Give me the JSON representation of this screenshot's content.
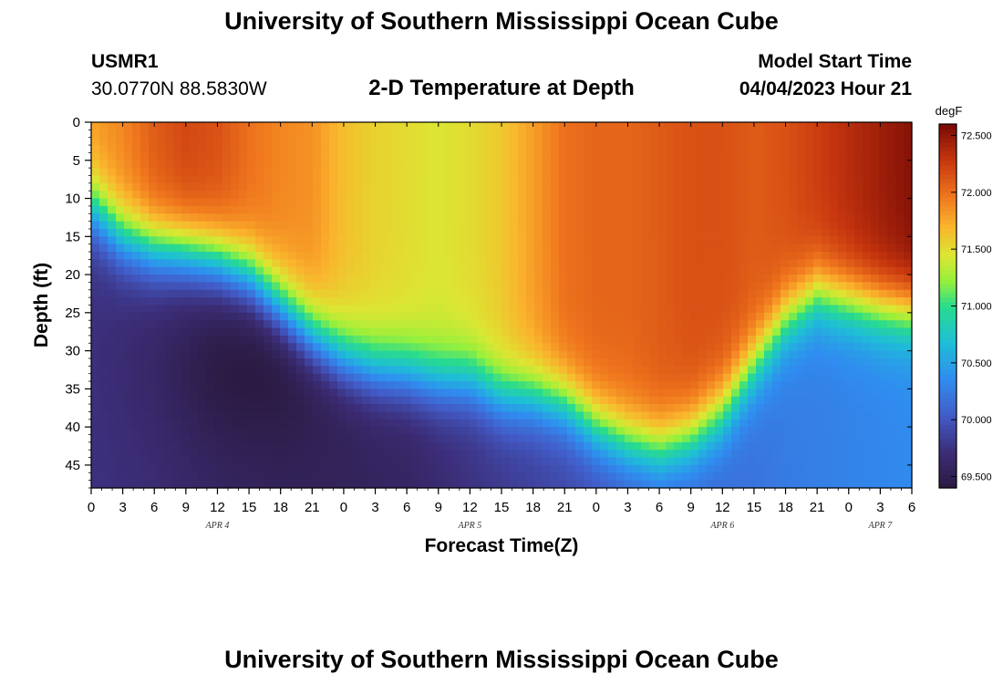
{
  "header": {
    "title": "University of Southern Mississippi Ocean Cube",
    "station_id": "USMR1",
    "station_coords": "30.0770N  88.5830W",
    "plot_title": "2-D Temperature at Depth",
    "model_start_label": "Model Start Time",
    "model_start_value": "04/04/2023 Hour 21"
  },
  "footer": {
    "title": "University of Southern Mississippi Ocean Cube"
  },
  "chart_data": {
    "type": "heatmap",
    "title": "2-D Temperature at Depth",
    "xlabel": "Forecast Time(Z)",
    "ylabel": "Depth (ft)",
    "x_range_hours": [
      0,
      78
    ],
    "y_range_ft": [
      0,
      48
    ],
    "y_inverted": true,
    "x_tick_step_hours": 3,
    "x_tick_labels": [
      "0",
      "3",
      "6",
      "9",
      "12",
      "15",
      "18",
      "21",
      "0",
      "3",
      "6",
      "9",
      "12",
      "15",
      "18",
      "21",
      "0",
      "3",
      "6",
      "9",
      "12",
      "15",
      "18",
      "21",
      "0",
      "3",
      "6"
    ],
    "y_tick_labels": [
      "0",
      "5",
      "10",
      "15",
      "20",
      "25",
      "30",
      "35",
      "40",
      "45"
    ],
    "y_tick_values": [
      0,
      5,
      10,
      15,
      20,
      25,
      30,
      35,
      40,
      45
    ],
    "date_labels": [
      {
        "text": "APR 4",
        "hour": 12
      },
      {
        "text": "APR 5",
        "hour": 36
      },
      {
        "text": "APR 6",
        "hour": 60
      },
      {
        "text": "APR 7",
        "hour": 75
      }
    ],
    "colorbar": {
      "unit": "degF",
      "min": 69.4,
      "max": 72.6,
      "tick_labels": [
        "72.500",
        "72.000",
        "71.500",
        "71.000",
        "70.500",
        "70.000",
        "69.500"
      ],
      "tick_values": [
        72.5,
        72.0,
        71.5,
        71.0,
        70.5,
        70.0,
        69.5
      ]
    },
    "thermocline_depth_ft": {
      "hours": [
        0,
        3,
        6,
        9,
        12,
        15,
        18,
        21,
        24,
        27,
        30,
        33,
        36,
        39,
        42,
        45,
        48,
        51,
        54,
        57,
        60,
        63,
        66,
        69,
        72,
        75,
        78
      ],
      "depth": [
        11,
        15,
        16.5,
        17,
        18,
        20,
        24,
        28,
        31,
        32.5,
        33,
        34,
        34,
        36,
        36,
        37,
        40,
        42,
        43,
        41.5,
        38,
        32,
        26,
        22.5,
        23.5,
        24.5,
        25
      ]
    },
    "surface_temperature_degF": {
      "hours": [
        0,
        3,
        6,
        9,
        12,
        15,
        18,
        21,
        24,
        27,
        30,
        33,
        36,
        39,
        42,
        45,
        48,
        51,
        54,
        57,
        60,
        63,
        66,
        69,
        72,
        75,
        78
      ],
      "temp": [
        71.8,
        71.9,
        72.1,
        72.2,
        72.15,
        72.0,
        71.9,
        71.85,
        71.65,
        71.55,
        71.5,
        71.45,
        71.5,
        71.6,
        71.8,
        72.0,
        72.05,
        72.05,
        72.1,
        72.15,
        72.15,
        72.1,
        72.15,
        72.25,
        72.35,
        72.45,
        72.55
      ]
    },
    "deep_temperature_degF": {
      "hours": [
        0,
        6,
        12,
        18,
        24,
        30,
        36,
        42,
        48,
        54,
        60,
        66,
        72,
        78
      ],
      "temp": [
        69.75,
        69.7,
        69.6,
        69.55,
        69.55,
        69.6,
        69.75,
        69.85,
        69.95,
        70.05,
        70.15,
        70.25,
        70.3,
        70.35
      ]
    }
  }
}
